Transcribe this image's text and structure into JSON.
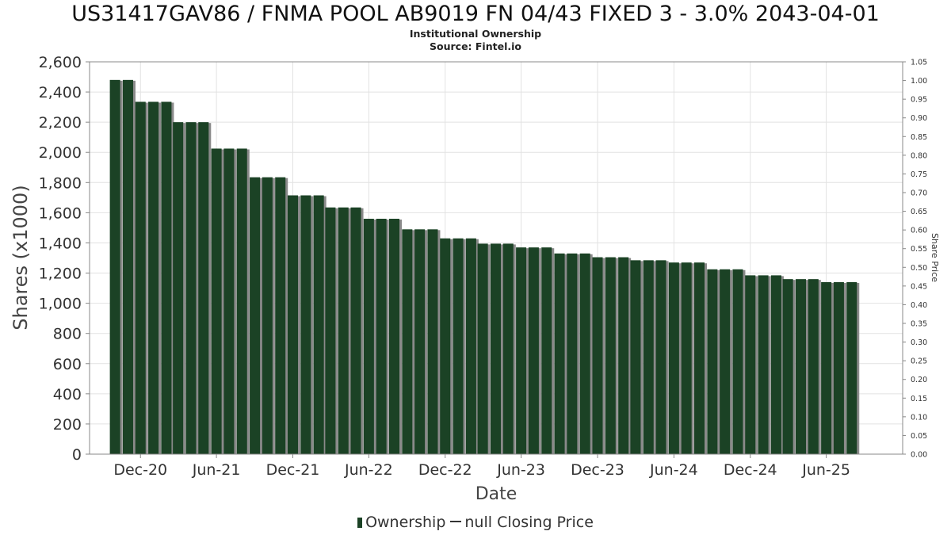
{
  "chart_data": {
    "type": "bar",
    "title": "US31417GAV86 / FNMA POOL AB9019 FN 04/43 FIXED 3 - 3.0% 2043-04-01",
    "subtitle_lines": [
      "Institutional Ownership",
      "Source: Fintel.io"
    ],
    "xlabel": "Date",
    "ylabel": "Shares (x1000)",
    "y2label": "Share Price",
    "ylim": [
      0,
      2600
    ],
    "y_ticks": [
      "0",
      "200",
      "400",
      "600",
      "800",
      "1,000",
      "1,200",
      "1,400",
      "1,600",
      "1,800",
      "2,000",
      "2,200",
      "2,400",
      "2,600"
    ],
    "y_tick_values": [
      0,
      200,
      400,
      600,
      800,
      1000,
      1200,
      1400,
      1600,
      1800,
      2000,
      2200,
      2400,
      2600
    ],
    "y2lim": [
      0,
      1.05
    ],
    "y2_ticks": [
      "0.00",
      "0.05",
      "0.10",
      "0.15",
      "0.20",
      "0.25",
      "0.30",
      "0.35",
      "0.40",
      "0.45",
      "0.50",
      "0.55",
      "0.60",
      "0.65",
      "0.70",
      "0.75",
      "0.80",
      "0.85",
      "0.90",
      "0.95",
      "1.00",
      "1.05"
    ],
    "y2_tick_values": [
      0,
      0.05,
      0.1,
      0.15,
      0.2,
      0.25,
      0.3,
      0.35,
      0.4,
      0.45,
      0.5,
      0.55,
      0.6,
      0.65,
      0.7,
      0.75,
      0.8,
      0.85,
      0.9,
      0.95,
      1.0,
      1.05
    ],
    "x_range": [
      "2020-08-01",
      "2025-12-01"
    ],
    "x_ticks": [
      {
        "label": "Dec-20",
        "date": "2020-12-01"
      },
      {
        "label": "Jun-21",
        "date": "2021-06-01"
      },
      {
        "label": "Dec-21",
        "date": "2021-12-01"
      },
      {
        "label": "Jun-22",
        "date": "2022-06-01"
      },
      {
        "label": "Dec-22",
        "date": "2022-12-01"
      },
      {
        "label": "Jun-23",
        "date": "2023-06-01"
      },
      {
        "label": "Dec-23",
        "date": "2023-12-01"
      },
      {
        "label": "Jun-24",
        "date": "2024-06-01"
      },
      {
        "label": "Dec-24",
        "date": "2024-12-01"
      },
      {
        "label": "Jun-25",
        "date": "2025-06-01"
      }
    ],
    "grid": true,
    "legend_position": "bottom",
    "series": [
      {
        "name": "Ownership",
        "color": "#1b4225",
        "x": [
          "2020-10-01",
          "2020-11-01",
          "2020-12-01",
          "2021-01-01",
          "2021-02-01",
          "2021-03-01",
          "2021-04-01",
          "2021-05-01",
          "2021-06-01",
          "2021-07-01",
          "2021-08-01",
          "2021-09-01",
          "2021-10-01",
          "2021-11-01",
          "2021-12-01",
          "2022-01-01",
          "2022-02-01",
          "2022-03-01",
          "2022-04-01",
          "2022-05-01",
          "2022-06-01",
          "2022-07-01",
          "2022-08-01",
          "2022-09-01",
          "2022-10-01",
          "2022-11-01",
          "2022-12-01",
          "2023-01-01",
          "2023-02-01",
          "2023-03-01",
          "2023-04-01",
          "2023-05-01",
          "2023-06-01",
          "2023-07-01",
          "2023-08-01",
          "2023-09-01",
          "2023-10-01",
          "2023-11-01",
          "2023-12-01",
          "2024-01-01",
          "2024-02-01",
          "2024-03-01",
          "2024-04-01",
          "2024-05-01",
          "2024-06-01",
          "2024-07-01",
          "2024-08-01",
          "2024-09-01",
          "2024-10-01",
          "2024-11-01",
          "2024-12-01",
          "2025-01-01",
          "2025-02-01",
          "2025-03-01",
          "2025-04-01",
          "2025-05-01",
          "2025-06-01",
          "2025-07-01",
          "2025-08-01"
        ],
        "values": [
          2480,
          2480,
          2335,
          2335,
          2335,
          2200,
          2200,
          2200,
          2025,
          2025,
          2025,
          1835,
          1835,
          1835,
          1715,
          1715,
          1715,
          1635,
          1635,
          1635,
          1560,
          1560,
          1560,
          1490,
          1490,
          1490,
          1430,
          1430,
          1430,
          1395,
          1395,
          1395,
          1370,
          1370,
          1370,
          1330,
          1330,
          1330,
          1305,
          1305,
          1305,
          1285,
          1285,
          1285,
          1270,
          1270,
          1270,
          1225,
          1225,
          1225,
          1185,
          1185,
          1185,
          1160,
          1160,
          1160,
          1140,
          1140,
          1140
        ]
      },
      {
        "name": "null Closing Price",
        "color": "#333333",
        "values": []
      }
    ]
  }
}
